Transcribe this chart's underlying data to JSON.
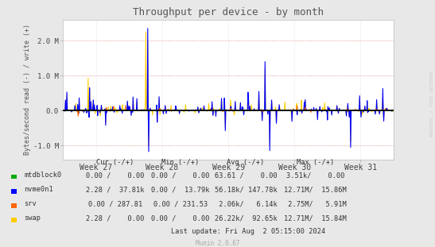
{
  "title": "Throughput per device - by month",
  "ylabel": "Bytes/second read (-) / write (+)",
  "background_color": "#e8e8e8",
  "plot_bg_color": "#ffffff",
  "title_color": "#555555",
  "watermark": "RRDTOOL / TOBI OETIKER",
  "ylim": [
    -1400000,
    2600000
  ],
  "yticks": [
    -1000000,
    0,
    1000000,
    2000000
  ],
  "ytick_labels": [
    "-1.0 M",
    "0.0",
    "1.0 M",
    "2.0 M"
  ],
  "xtick_labels": [
    "Week 27",
    "Week 28",
    "Week 29",
    "Week 30",
    "Week 31"
  ],
  "week_ticks": [
    0.5,
    1.5,
    2.5,
    3.5,
    4.5
  ],
  "colors": {
    "mtdblock0": "#00aa00",
    "nvme0n1": "#0000ff",
    "srv": "#ff6600",
    "swap": "#ffcc00"
  },
  "hline_color": "#ff9999",
  "zero_line_color": "#000000",
  "grid_color": "#cccccc",
  "last_update": "Last update: Fri Aug  2 05:15:00 2024",
  "munin_version": "Munin 2.0.67",
  "table": {
    "header": [
      "Cur (-/+)",
      "Min (-/+)",
      "Avg (-/+)",
      "Max (-/+)"
    ],
    "rows": [
      [
        "mtdblock0",
        "#00aa00",
        "0.00 /    0.00",
        "0.00 /    0.00",
        "63.61 /    0.00",
        "3.51k/    0.00"
      ],
      [
        "nvme0n1",
        "#0000ff",
        "2.28 /  37.81k",
        "0.00 /  13.79k",
        "56.18k/ 147.78k",
        "12.71M/  15.86M"
      ],
      [
        "srv",
        "#ff6600",
        "0.00 / 287.81",
        "0.00 / 231.53",
        " 2.06k/   6.14k",
        " 2.75M/   5.91M"
      ],
      [
        "swap",
        "#ffcc00",
        "2.28 /    0.00",
        "0.00 /    0.00",
        "26.22k/  92.65k",
        "12.71M/  15.84M"
      ]
    ]
  }
}
